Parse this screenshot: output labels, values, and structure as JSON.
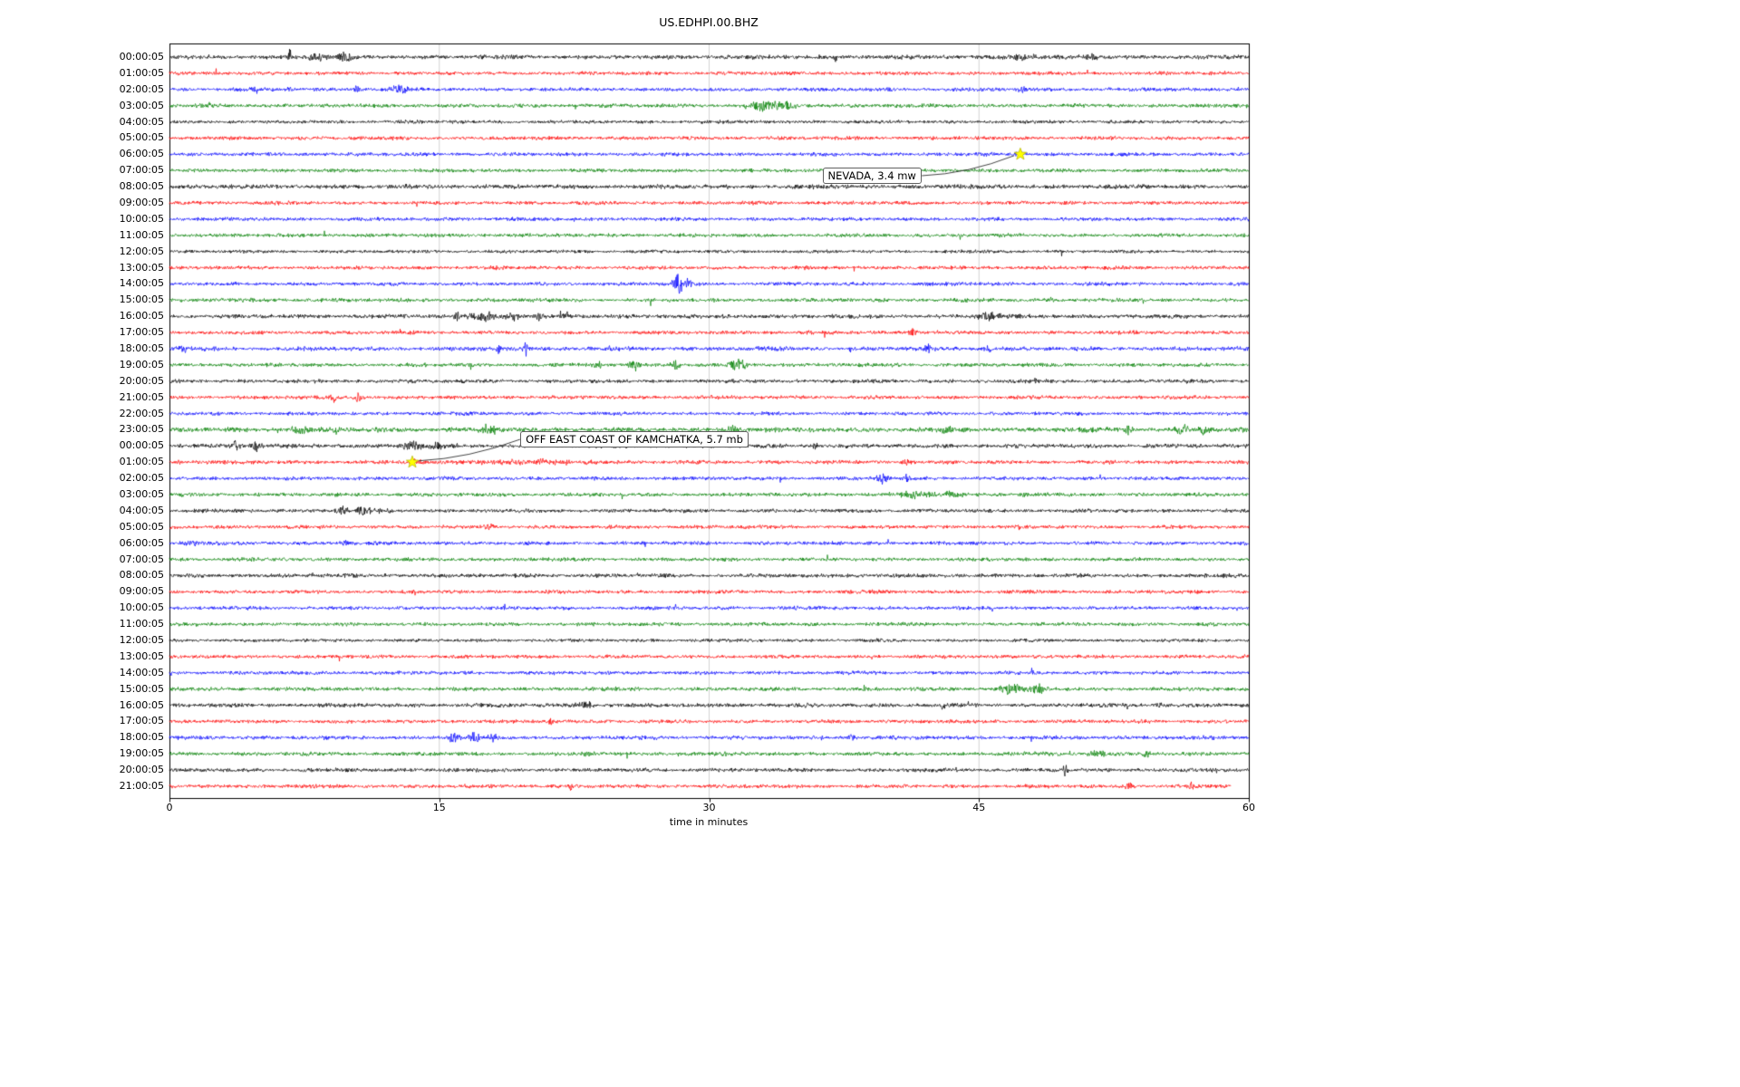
{
  "chart_data": {
    "type": "line",
    "subtype": "seismogram-dayplot",
    "title": "US.EDHPI.00.BHZ",
    "xlabel": "time in minutes",
    "xlim": [
      0,
      60
    ],
    "xticks": [
      0,
      15,
      30,
      45,
      60
    ],
    "grid": {
      "vertical_ticks": [
        15,
        30,
        45
      ],
      "color": "#c8c8c8"
    },
    "trace_colors": [
      "#000000",
      "#ff0000",
      "#0000ff",
      "#008000"
    ],
    "marker_color": "#ffff00",
    "rows": [
      {
        "label": "00:00:05",
        "color": "#000000",
        "noise": 1.15,
        "events": [
          {
            "t": 6.7,
            "a": 9,
            "w": 0.08
          },
          {
            "t": 8.2,
            "a": 4,
            "w": 0.5
          },
          {
            "t": 9.7,
            "a": 5,
            "w": 0.3
          },
          {
            "t": 37.0,
            "a": 7,
            "w": 0.06
          },
          {
            "t": 47.5,
            "a": 3.5,
            "w": 0.8
          },
          {
            "t": 51.3,
            "a": 4,
            "w": 0.3
          }
        ]
      },
      {
        "label": "01:00:05",
        "color": "#ff0000",
        "noise": 1.0,
        "events": [
          {
            "t": 55.2,
            "a": 3,
            "w": 0.3
          }
        ]
      },
      {
        "label": "02:00:05",
        "color": "#0000ff",
        "noise": 1.0,
        "events": [
          {
            "t": 4.8,
            "a": 3.5,
            "w": 0.1
          },
          {
            "t": 6.7,
            "a": 4,
            "w": 0.1
          },
          {
            "t": 10.4,
            "a": 4.5,
            "w": 0.12
          },
          {
            "t": 12.8,
            "a": 6,
            "w": 0.35
          },
          {
            "t": 47.4,
            "a": 4,
            "w": 0.15
          }
        ]
      },
      {
        "label": "03:00:05",
        "color": "#008000",
        "noise": 1.05,
        "events": [
          {
            "t": 2.2,
            "a": 5,
            "w": 0.08
          },
          {
            "t": 33.0,
            "a": 5,
            "w": 0.7
          },
          {
            "t": 34.3,
            "a": 4,
            "w": 0.4
          }
        ]
      },
      {
        "label": "04:00:05",
        "color": "#000000",
        "noise": 0.95,
        "events": []
      },
      {
        "label": "05:00:05",
        "color": "#ff0000",
        "noise": 1.0,
        "events": []
      },
      {
        "label": "06:00:05",
        "color": "#0000ff",
        "noise": 1.0,
        "events": [
          {
            "t": 47.3,
            "a": 3,
            "w": 0.25
          }
        ]
      },
      {
        "label": "07:00:05",
        "color": "#008000",
        "noise": 1.0,
        "events": []
      },
      {
        "label": "08:00:05",
        "color": "#000000",
        "noise": 1.2,
        "events": []
      },
      {
        "label": "09:00:05",
        "color": "#ff0000",
        "noise": 1.0,
        "events": []
      },
      {
        "label": "10:00:05",
        "color": "#0000ff",
        "noise": 1.0,
        "events": []
      },
      {
        "label": "11:00:05",
        "color": "#008000",
        "noise": 1.0,
        "events": []
      },
      {
        "label": "12:00:05",
        "color": "#000000",
        "noise": 0.9,
        "events": []
      },
      {
        "label": "13:00:05",
        "color": "#ff0000",
        "noise": 1.0,
        "events": []
      },
      {
        "label": "14:00:05",
        "color": "#0000ff",
        "noise": 1.0,
        "events": [
          {
            "t": 28.3,
            "a": 12,
            "w": 0.2
          },
          {
            "t": 28.8,
            "a": 8,
            "w": 0.15
          }
        ]
      },
      {
        "label": "15:00:05",
        "color": "#008000",
        "noise": 1.05,
        "events": []
      },
      {
        "label": "16:00:05",
        "color": "#000000",
        "noise": 1.1,
        "events": [
          {
            "t": 16.0,
            "a": 5,
            "w": 0.15
          },
          {
            "t": 17.5,
            "a": 5,
            "w": 0.6
          },
          {
            "t": 19.0,
            "a": 4,
            "w": 0.4
          },
          {
            "t": 20.5,
            "a": 5,
            "w": 0.15
          },
          {
            "t": 22.0,
            "a": 3.5,
            "w": 0.3
          },
          {
            "t": 45.5,
            "a": 4.5,
            "w": 0.5
          }
        ]
      },
      {
        "label": "17:00:05",
        "color": "#ff0000",
        "noise": 1.0,
        "events": [
          {
            "t": 41.3,
            "a": 5,
            "w": 0.15
          }
        ]
      },
      {
        "label": "18:00:05",
        "color": "#0000ff",
        "noise": 1.15,
        "events": [
          {
            "t": 0.6,
            "a": 5,
            "w": 0.3
          },
          {
            "t": 18.3,
            "a": 11,
            "w": 0.07
          },
          {
            "t": 19.8,
            "a": 13,
            "w": 0.07
          },
          {
            "t": 37.9,
            "a": 4,
            "w": 0.12
          },
          {
            "t": 42.2,
            "a": 6,
            "w": 0.12
          },
          {
            "t": 45.5,
            "a": 4,
            "w": 0.2
          }
        ]
      },
      {
        "label": "19:00:05",
        "color": "#008000",
        "noise": 1.05,
        "events": [
          {
            "t": 23.8,
            "a": 4,
            "w": 0.2
          },
          {
            "t": 25.9,
            "a": 6,
            "w": 0.25
          },
          {
            "t": 28.1,
            "a": 6,
            "w": 0.2
          },
          {
            "t": 31.5,
            "a": 7,
            "w": 0.35
          }
        ]
      },
      {
        "label": "20:00:05",
        "color": "#000000",
        "noise": 1.05,
        "events": [
          {
            "t": 48.2,
            "a": 3,
            "w": 0.3
          }
        ]
      },
      {
        "label": "21:00:05",
        "color": "#ff0000",
        "noise": 1.0,
        "events": [
          {
            "t": 9.1,
            "a": 6,
            "w": 0.15
          },
          {
            "t": 10.5,
            "a": 5,
            "w": 0.2
          }
        ]
      },
      {
        "label": "22:00:05",
        "color": "#0000ff",
        "noise": 0.95,
        "events": []
      },
      {
        "label": "23:00:05",
        "color": "#008000",
        "noise": 1.3,
        "events": [
          {
            "t": 7.3,
            "a": 5,
            "w": 0.4
          },
          {
            "t": 9.2,
            "a": 5,
            "w": 0.2
          },
          {
            "t": 17.8,
            "a": 5,
            "w": 0.3
          },
          {
            "t": 31.4,
            "a": 5,
            "w": 0.3
          },
          {
            "t": 43.2,
            "a": 4,
            "w": 0.3
          },
          {
            "t": 53.3,
            "a": 4,
            "w": 0.2
          },
          {
            "t": 56.3,
            "a": 9,
            "w": 0.25
          },
          {
            "t": 57.5,
            "a": 5,
            "w": 0.2
          }
        ]
      },
      {
        "label": "00:00:05",
        "color": "#000000",
        "noise": 1.15,
        "events": [
          {
            "t": 3.7,
            "a": 5,
            "w": 0.2
          },
          {
            "t": 4.8,
            "a": 5,
            "w": 0.25
          },
          {
            "t": 13.5,
            "a": 5,
            "w": 0.5
          },
          {
            "t": 14.8,
            "a": 4,
            "w": 0.3
          },
          {
            "t": 35.9,
            "a": 4.5,
            "w": 0.1
          }
        ]
      },
      {
        "label": "01:00:05",
        "color": "#ff0000",
        "noise": 1.05,
        "events": [
          {
            "t": 0.5,
            "a": 5,
            "w": 0.08
          },
          {
            "t": 13.6,
            "a": 4,
            "w": 0.3
          },
          {
            "t": 20.0,
            "a": 2.5,
            "w": 3.0
          },
          {
            "t": 41.0,
            "a": 3,
            "w": 0.2
          }
        ]
      },
      {
        "label": "02:00:05",
        "color": "#0000ff",
        "noise": 1.0,
        "events": [
          {
            "t": 39.6,
            "a": 7,
            "w": 0.2
          },
          {
            "t": 41.0,
            "a": 5,
            "w": 0.12
          }
        ]
      },
      {
        "label": "03:00:05",
        "color": "#008000",
        "noise": 1.05,
        "events": [
          {
            "t": 41.5,
            "a": 3.5,
            "w": 0.8
          },
          {
            "t": 43.5,
            "a": 3.5,
            "w": 0.4
          },
          {
            "t": 47.5,
            "a": 3.5,
            "w": 0.2
          }
        ]
      },
      {
        "label": "04:00:05",
        "color": "#000000",
        "noise": 1.0,
        "events": [
          {
            "t": 9.6,
            "a": 5,
            "w": 0.3
          },
          {
            "t": 10.8,
            "a": 5,
            "w": 0.35
          },
          {
            "t": 11.8,
            "a": 4,
            "w": 0.2
          }
        ]
      },
      {
        "label": "05:00:05",
        "color": "#ff0000",
        "noise": 1.0,
        "events": [
          {
            "t": 17.8,
            "a": 3,
            "w": 0.2
          },
          {
            "t": 47.2,
            "a": 3,
            "w": 0.15
          }
        ]
      },
      {
        "label": "06:00:05",
        "color": "#0000ff",
        "noise": 1.0,
        "events": [
          {
            "t": 1.0,
            "a": 3,
            "w": 0.4
          },
          {
            "t": 9.8,
            "a": 3,
            "w": 0.2
          }
        ]
      },
      {
        "label": "07:00:05",
        "color": "#008000",
        "noise": 1.0,
        "events": []
      },
      {
        "label": "08:00:05",
        "color": "#000000",
        "noise": 1.1,
        "events": []
      },
      {
        "label": "09:00:05",
        "color": "#ff0000",
        "noise": 1.0,
        "events": []
      },
      {
        "label": "10:00:05",
        "color": "#0000ff",
        "noise": 1.0,
        "events": []
      },
      {
        "label": "11:00:05",
        "color": "#008000",
        "noise": 1.0,
        "events": []
      },
      {
        "label": "12:00:05",
        "color": "#000000",
        "noise": 0.9,
        "events": []
      },
      {
        "label": "13:00:05",
        "color": "#ff0000",
        "noise": 1.0,
        "events": []
      },
      {
        "label": "14:00:05",
        "color": "#0000ff",
        "noise": 1.0,
        "events": []
      },
      {
        "label": "15:00:05",
        "color": "#008000",
        "noise": 1.05,
        "events": [
          {
            "t": 46.8,
            "a": 6,
            "w": 0.5
          },
          {
            "t": 48.3,
            "a": 5,
            "w": 0.4
          }
        ]
      },
      {
        "label": "16:00:05",
        "color": "#000000",
        "noise": 1.1,
        "events": [
          {
            "t": 23.1,
            "a": 4,
            "w": 0.3
          },
          {
            "t": 43.0,
            "a": 5,
            "w": 0.1
          },
          {
            "t": 55.0,
            "a": 3,
            "w": 0.2
          }
        ]
      },
      {
        "label": "17:00:05",
        "color": "#ff0000",
        "noise": 1.0,
        "events": [
          {
            "t": 21.2,
            "a": 5,
            "w": 0.1
          }
        ]
      },
      {
        "label": "18:00:05",
        "color": "#0000ff",
        "noise": 1.05,
        "events": [
          {
            "t": 15.8,
            "a": 5,
            "w": 0.3
          },
          {
            "t": 17.0,
            "a": 6,
            "w": 0.25
          },
          {
            "t": 18.0,
            "a": 4,
            "w": 0.2
          },
          {
            "t": 37.9,
            "a": 4,
            "w": 0.15
          }
        ]
      },
      {
        "label": "19:00:05",
        "color": "#008000",
        "noise": 1.05,
        "events": [
          {
            "t": 23.3,
            "a": 3.5,
            "w": 0.2
          },
          {
            "t": 51.5,
            "a": 4,
            "w": 0.4
          },
          {
            "t": 54.3,
            "a": 5,
            "w": 0.15
          }
        ]
      },
      {
        "label": "20:00:05",
        "color": "#000000",
        "noise": 1.05,
        "events": [
          {
            "t": 49.8,
            "a": 5,
            "w": 0.12
          }
        ]
      },
      {
        "label": "21:00:05",
        "color": "#ff0000",
        "noise": 1.0,
        "end_min": 59,
        "events": [
          {
            "t": 22.3,
            "a": 6,
            "w": 0.1
          },
          {
            "t": 53.3,
            "a": 4,
            "w": 0.2
          },
          {
            "t": 56.8,
            "a": 6,
            "w": 0.12
          }
        ]
      }
    ],
    "annotations": [
      {
        "text": "NEVADA, 3.4 mw",
        "marker": "star",
        "star_t": 47.3,
        "star_row": 6,
        "label_t": 36.3,
        "label_row": 7.35
      },
      {
        "text": "OFF EAST COAST OF KAMCHATKA, 5.7 mb",
        "marker": "star",
        "star_t": 13.5,
        "star_row": 25,
        "label_t": 19.5,
        "label_row": 23.6
      }
    ]
  }
}
